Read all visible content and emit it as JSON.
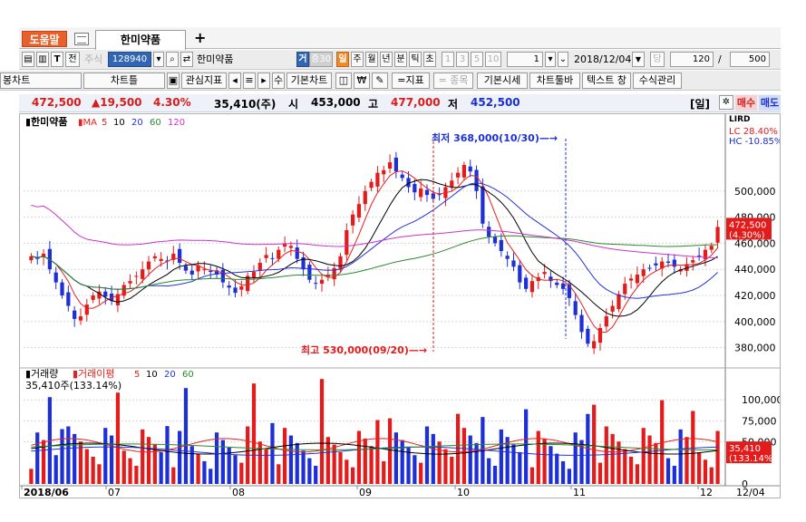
{
  "tabs": {
    "help_label": "도움말",
    "active_tab_label": "한미약품",
    "add_tab_symbol": "+"
  },
  "toolbar1": {
    "stock_label": "주식",
    "stock_code": "128940",
    "stock_name": "한미약품",
    "badge_geo": "거",
    "badge_score": "증30",
    "period_day": "일",
    "period_week": "주",
    "period_month": "월",
    "period_year": "년",
    "period_minute": "분",
    "period_tick": "틱",
    "period_second": "초",
    "interval_1": "1",
    "interval_3": "3",
    "interval_5": "5",
    "interval_10": "10",
    "interval_value": "1",
    "date_value": "2018/12/04",
    "date_dropdown": "▼",
    "dang_label": "당",
    "count_value": "120",
    "slash": "/",
    "total_value": "500"
  },
  "toolbar2": {
    "chart_type": "봉차트",
    "chart_tool": "차트틀",
    "interest_indicator": "관심지표",
    "arrows": [
      "◂",
      "≡",
      "▸"
    ],
    "sum_label": "수",
    "basic_chart": "기본차트",
    "won_symbol": "₩",
    "indicator_label": "=지표",
    "item_label": "= 종목",
    "basic_quote": "기본시세",
    "chart_toolbar": "차트툴바",
    "text_window": "텍스트 창",
    "formula_mgmt": "수식관리"
  },
  "price_info": {
    "price": "472,500",
    "change": "▲19,500",
    "change_pct": "4.30%",
    "volume": "35,410(주)",
    "open_label": "시",
    "open": "453,000",
    "high_label": "고",
    "high": "477,000",
    "low_label": "저",
    "low": "452,500",
    "period_label": "[일]",
    "buy_label": "매수",
    "sell_label": "매도"
  },
  "chart_data": [
    {
      "type": "candlestick",
      "title": "한미약품",
      "ma_label": "MA",
      "ma_periods": [
        "5",
        "10",
        "20",
        "60",
        "120"
      ],
      "ma_colors": [
        "#e8201e",
        "#000000",
        "#2233dd",
        "#2a8a2a",
        "#cc33cc"
      ],
      "y_ticks": [
        380000,
        400000,
        420000,
        440000,
        460000,
        480000,
        500000
      ],
      "y_tick_labels": [
        "380,000",
        "400,000",
        "420,000",
        "440,000",
        "460,000",
        "480,000",
        "500,000"
      ],
      "ylim": [
        370000,
        545000
      ],
      "x_labels": [
        "2018/06",
        "07",
        "08",
        "09",
        "10",
        "11",
        "12"
      ],
      "last_price_label": "472,500",
      "last_price_pct": "(4.30%)",
      "lc_label": "LC  28.40%",
      "hc_label": "HC -10.85%",
      "lird_label": "LIRD",
      "annotation_low": "최저  368,000(10/30)",
      "annotation_high": "최고  530,000(09/20)",
      "price_points": [
        450000,
        448000,
        452000,
        440000,
        430000,
        420000,
        412000,
        402000,
        404000,
        413000,
        420000,
        423000,
        419000,
        416000,
        421000,
        428000,
        431000,
        435000,
        440000,
        446000,
        450000,
        448000,
        446000,
        452000,
        445000,
        439000,
        436000,
        443000,
        440000,
        438000,
        436000,
        430000,
        426000,
        422000,
        427000,
        435000,
        438000,
        445000,
        451000,
        448000,
        455000,
        460000,
        458000,
        448000,
        440000,
        432000,
        429000,
        432000,
        436000,
        441000,
        450000,
        470000,
        482000,
        490000,
        500000,
        507000,
        514000,
        516000,
        522000,
        515000,
        510000,
        503000,
        499000,
        502000,
        497000,
        494000,
        497000,
        503000,
        508000,
        514000,
        520000,
        515000,
        500000,
        475000,
        465000,
        460000,
        454000,
        448000,
        442000,
        430000,
        425000,
        431000,
        434000,
        438000,
        431000,
        428000,
        425000,
        418000,
        405000,
        392000,
        383000,
        385000,
        395000,
        404000,
        412000,
        421000,
        429000,
        433000,
        436000,
        440000,
        441000,
        443000,
        446000,
        445000,
        442000,
        440000,
        444000,
        447000,
        450000,
        455000,
        458000,
        472500
      ]
    },
    {
      "type": "bar",
      "title": "거래량",
      "ma_label": "거래이평",
      "ma_periods": [
        "5",
        "10",
        "20",
        "60"
      ],
      "ma_colors": [
        "#e8201e",
        "#000000",
        "#2233dd",
        "#2a8a2a"
      ],
      "current_label": "35,410주(133.14%)",
      "y_ticks": [
        0,
        50000,
        75000,
        100000
      ],
      "y_tick_labels": [
        "0",
        "50,000",
        "75,000",
        "100,000"
      ],
      "ylim": [
        0,
        125000
      ],
      "last_volume_label": "35,410",
      "last_volume_pct": "(133.14%)",
      "date_label": "12/04"
    }
  ]
}
